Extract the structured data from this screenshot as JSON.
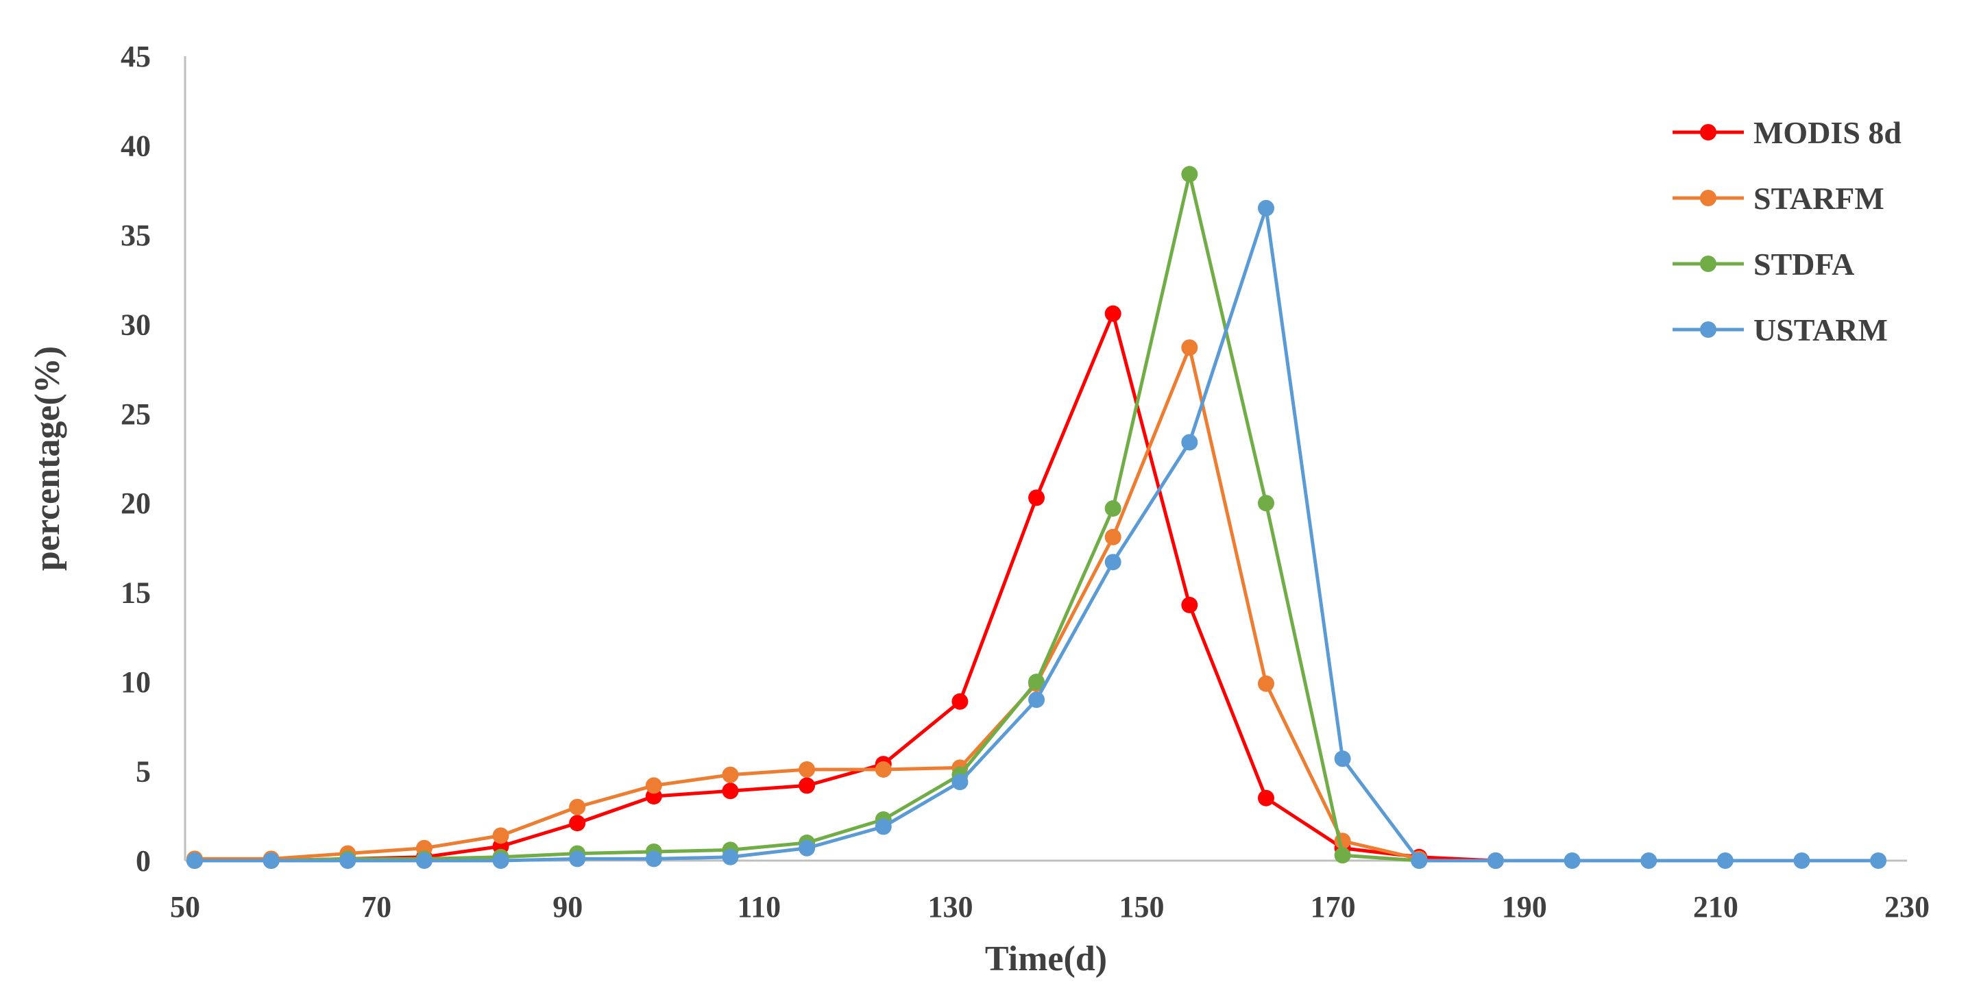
{
  "chart_data": {
    "type": "line",
    "title": "",
    "xlabel": "Time(d)",
    "ylabel": "percentage(%)",
    "xlim": [
      50,
      230
    ],
    "ylim": [
      0,
      45
    ],
    "x_ticks": [
      50,
      70,
      90,
      110,
      130,
      150,
      170,
      190,
      210,
      230
    ],
    "y_ticks": [
      0,
      5,
      10,
      15,
      20,
      25,
      30,
      35,
      40,
      45
    ],
    "grid": false,
    "legend_position": "top-right",
    "x": [
      51,
      59,
      67,
      75,
      83,
      91,
      99,
      107,
      115,
      123,
      131,
      139,
      147,
      155,
      163,
      171,
      179,
      187,
      195,
      203,
      211,
      219,
      227
    ],
    "series": [
      {
        "name": "MODIS 8d",
        "color": "#ff0000",
        "x": [
          51,
          59,
          67,
          75,
          83,
          91,
          99,
          107,
          115,
          123,
          131,
          139,
          147,
          155,
          163,
          171,
          179,
          187
        ],
        "values": [
          0,
          0,
          0.1,
          0.2,
          0.8,
          2.1,
          3.6,
          3.9,
          4.2,
          5.4,
          8.9,
          20.3,
          30.6,
          14.3,
          3.5,
          0.7,
          0.2,
          0
        ]
      },
      {
        "name": "STARFM",
        "color": "#ed7d31",
        "x": [
          51,
          59,
          67,
          75,
          83,
          91,
          99,
          107,
          115,
          123,
          131,
          139,
          147,
          155,
          163,
          171,
          179
        ],
        "values": [
          0.1,
          0.1,
          0.4,
          0.7,
          1.4,
          3.0,
          4.2,
          4.8,
          5.1,
          5.1,
          5.2,
          9.9,
          18.1,
          28.7,
          9.9,
          1.1,
          0.1
        ]
      },
      {
        "name": "STDFA",
        "color": "#70ad47",
        "x": [
          51,
          59,
          67,
          75,
          83,
          91,
          99,
          107,
          115,
          123,
          131,
          139,
          147,
          155,
          163,
          171,
          179
        ],
        "values": [
          0,
          0,
          0.1,
          0.1,
          0.2,
          0.4,
          0.5,
          0.6,
          1.0,
          2.3,
          4.8,
          10.0,
          19.7,
          38.4,
          20.0,
          0.3,
          0
        ]
      },
      {
        "name": "USTARM",
        "color": "#5b9bd5",
        "x": [
          51,
          59,
          67,
          75,
          83,
          91,
          99,
          107,
          115,
          123,
          131,
          139,
          147,
          155,
          163,
          171,
          179,
          187,
          195,
          203,
          211,
          219,
          227
        ],
        "values": [
          0,
          0,
          0,
          0,
          0,
          0.1,
          0.1,
          0.2,
          0.7,
          1.9,
          4.4,
          9.0,
          16.7,
          23.4,
          36.5,
          5.7,
          0,
          0,
          0,
          0,
          0,
          0,
          0
        ]
      }
    ]
  }
}
